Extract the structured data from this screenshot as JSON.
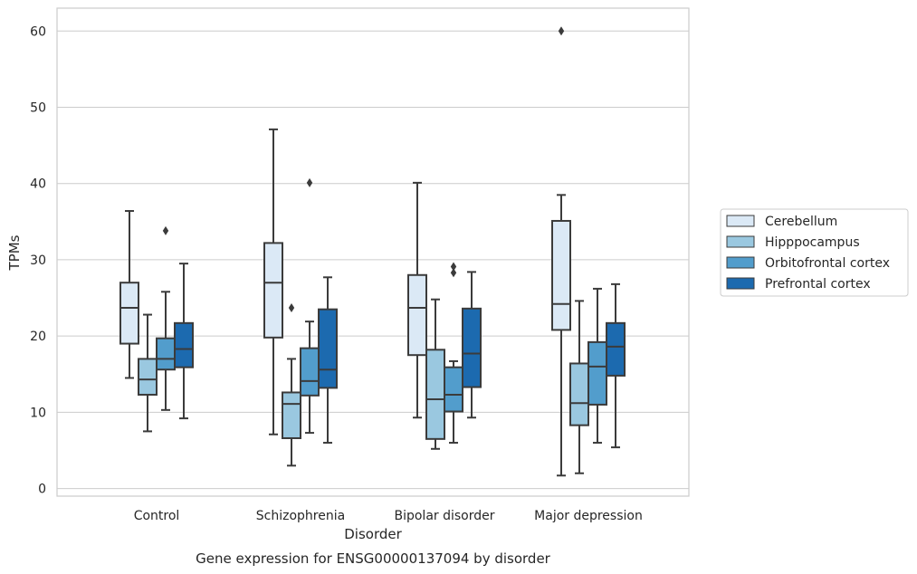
{
  "chart_data": {
    "type": "box",
    "title": "Gene expression for ENSG00000137094 by disorder",
    "xlabel": "Disorder",
    "ylabel": "TPMs",
    "ylim": [
      -1,
      63
    ],
    "yticks": [
      0,
      10,
      20,
      30,
      40,
      50,
      60
    ],
    "grid": "horizontal",
    "legend_position": "right",
    "categories": [
      "Control",
      "Schizophrenia",
      "Bipolar disorder",
      "Major depression"
    ],
    "series": [
      {
        "name": "Cerebellum",
        "color": "#dbe9f6",
        "boxes": [
          {
            "whisker_low": 14.5,
            "q1": 19.0,
            "median": 23.7,
            "q3": 27.0,
            "whisker_high": 36.4,
            "outliers": []
          },
          {
            "whisker_low": 7.1,
            "q1": 19.8,
            "median": 27.0,
            "q3": 32.2,
            "whisker_high": 47.1,
            "outliers": []
          },
          {
            "whisker_low": 9.3,
            "q1": 17.5,
            "median": 23.7,
            "q3": 28.0,
            "whisker_high": 40.1,
            "outliers": []
          },
          {
            "whisker_low": 1.7,
            "q1": 20.8,
            "median": 24.2,
            "q3": 35.1,
            "whisker_high": 38.5,
            "outliers": [
              60.0
            ]
          }
        ]
      },
      {
        "name": "Hipppocampus",
        "color": "#9ac8e0",
        "boxes": [
          {
            "whisker_low": 7.5,
            "q1": 12.3,
            "median": 14.3,
            "q3": 17.0,
            "whisker_high": 22.8,
            "outliers": []
          },
          {
            "whisker_low": 3.0,
            "q1": 6.6,
            "median": 11.1,
            "q3": 12.6,
            "whisker_high": 17.0,
            "outliers": [
              23.7
            ]
          },
          {
            "whisker_low": 5.2,
            "q1": 6.5,
            "median": 11.7,
            "q3": 18.2,
            "whisker_high": 24.8,
            "outliers": []
          },
          {
            "whisker_low": 2.0,
            "q1": 8.3,
            "median": 11.2,
            "q3": 16.4,
            "whisker_high": 24.6,
            "outliers": []
          }
        ]
      },
      {
        "name": "Orbitofrontal cortex",
        "color": "#529dcc",
        "boxes": [
          {
            "whisker_low": 10.3,
            "q1": 15.6,
            "median": 17.0,
            "q3": 19.7,
            "whisker_high": 25.8,
            "outliers": [
              33.8
            ]
          },
          {
            "whisker_low": 7.3,
            "q1": 12.2,
            "median": 14.1,
            "q3": 18.4,
            "whisker_high": 21.9,
            "outliers": [
              40.1
            ]
          },
          {
            "whisker_low": 6.0,
            "q1": 10.1,
            "median": 12.3,
            "q3": 15.9,
            "whisker_high": 16.7,
            "outliers": [
              28.3,
              29.1
            ]
          },
          {
            "whisker_low": 6.0,
            "q1": 11.0,
            "median": 16.0,
            "q3": 19.2,
            "whisker_high": 26.2,
            "outliers": []
          }
        ]
      },
      {
        "name": "Prefrontal cortex",
        "color": "#1c6aaf",
        "boxes": [
          {
            "whisker_low": 9.2,
            "q1": 15.9,
            "median": 18.3,
            "q3": 21.7,
            "whisker_high": 29.5,
            "outliers": []
          },
          {
            "whisker_low": 6.0,
            "q1": 13.2,
            "median": 15.6,
            "q3": 23.5,
            "whisker_high": 27.7,
            "outliers": []
          },
          {
            "whisker_low": 9.3,
            "q1": 13.3,
            "median": 17.7,
            "q3": 23.6,
            "whisker_high": 28.4,
            "outliers": []
          },
          {
            "whisker_low": 5.4,
            "q1": 14.8,
            "median": 18.6,
            "q3": 21.7,
            "whisker_high": 26.8,
            "outliers": []
          }
        ]
      }
    ]
  }
}
